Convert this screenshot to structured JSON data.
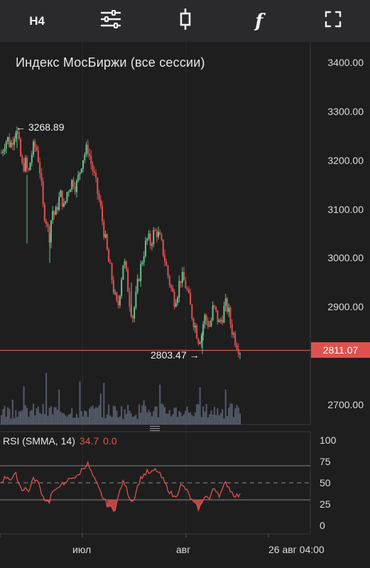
{
  "toolbar": {
    "timeframe_label": "H4",
    "items": [
      {
        "name": "settings-sliders-icon"
      },
      {
        "name": "candlestick-icon"
      },
      {
        "name": "indicator-function-icon",
        "glyph": "f"
      },
      {
        "name": "fullscreen-icon"
      }
    ]
  },
  "chart": {
    "title": "Индекс МосБиржи (все сессии)",
    "price_axis": [
      "3400.00",
      "3300.00",
      "3200.00",
      "3100.00",
      "3000.00",
      "2900.00",
      "2700.00"
    ],
    "current_price": "2811.07",
    "high_label": "← 3268.89",
    "low_label": "2803.47 →",
    "up_color": "#6cc08a",
    "down_color": "#e0514e"
  },
  "rsi": {
    "name": "RSI (SMMA, 14)",
    "value": "34.7",
    "value2": "0.0",
    "axis": [
      "100",
      "75",
      "50",
      "25",
      "0"
    ],
    "line_color": "#e0514e"
  },
  "x_axis": {
    "labels": [
      "июл",
      "авг"
    ],
    "cursor_time": "26 авг 04:00"
  },
  "chart_data": {
    "type": "candlestick",
    "title": "Индекс МосБиржи (все сессии)",
    "y_range": [
      2650,
      3440
    ],
    "high": 3268.89,
    "low": 2803.47,
    "last": 2811.07,
    "close_path": [
      3215,
      3235,
      3245,
      3230,
      3250,
      3268,
      3225,
      3185,
      3195,
      3170,
      3210,
      3230,
      3220,
      3175,
      3100,
      3080,
      3040,
      3100,
      3085,
      3115,
      3130,
      3100,
      3135,
      3150,
      3160,
      3145,
      3170,
      3200,
      3215,
      3225,
      3195,
      3170,
      3140,
      3110,
      3070,
      3030,
      2990,
      2960,
      2920,
      2895,
      2950,
      3000,
      2960,
      2910,
      2880,
      2915,
      2960,
      2990,
      3020,
      3040,
      3030,
      3050,
      3055,
      3040,
      3020,
      2990,
      2960,
      2935,
      2915,
      2930,
      2960,
      2955,
      2940,
      2910,
      2880,
      2860,
      2835,
      2840,
      2880,
      2870,
      2860,
      2900,
      2885,
      2865,
      2880,
      2905,
      2895,
      2860,
      2840,
      2825,
      2812
    ],
    "rsi_values": [
      52,
      55,
      58,
      54,
      57,
      60,
      48,
      42,
      45,
      38,
      50,
      55,
      52,
      44,
      33,
      30,
      27,
      40,
      38,
      46,
      50,
      45,
      52,
      55,
      58,
      55,
      60,
      66,
      70,
      72,
      63,
      55,
      48,
      40,
      33,
      27,
      22,
      20,
      19,
      30,
      45,
      52,
      42,
      33,
      28,
      38,
      50,
      57,
      60,
      63,
      60,
      64,
      65,
      60,
      55,
      48,
      42,
      37,
      33,
      38,
      47,
      45,
      42,
      35,
      28,
      24,
      20,
      23,
      36,
      33,
      30,
      45,
      42,
      36,
      40,
      50,
      47,
      40,
      36,
      35,
      34.7
    ],
    "rsi_levels": [
      70,
      50,
      30
    ]
  }
}
